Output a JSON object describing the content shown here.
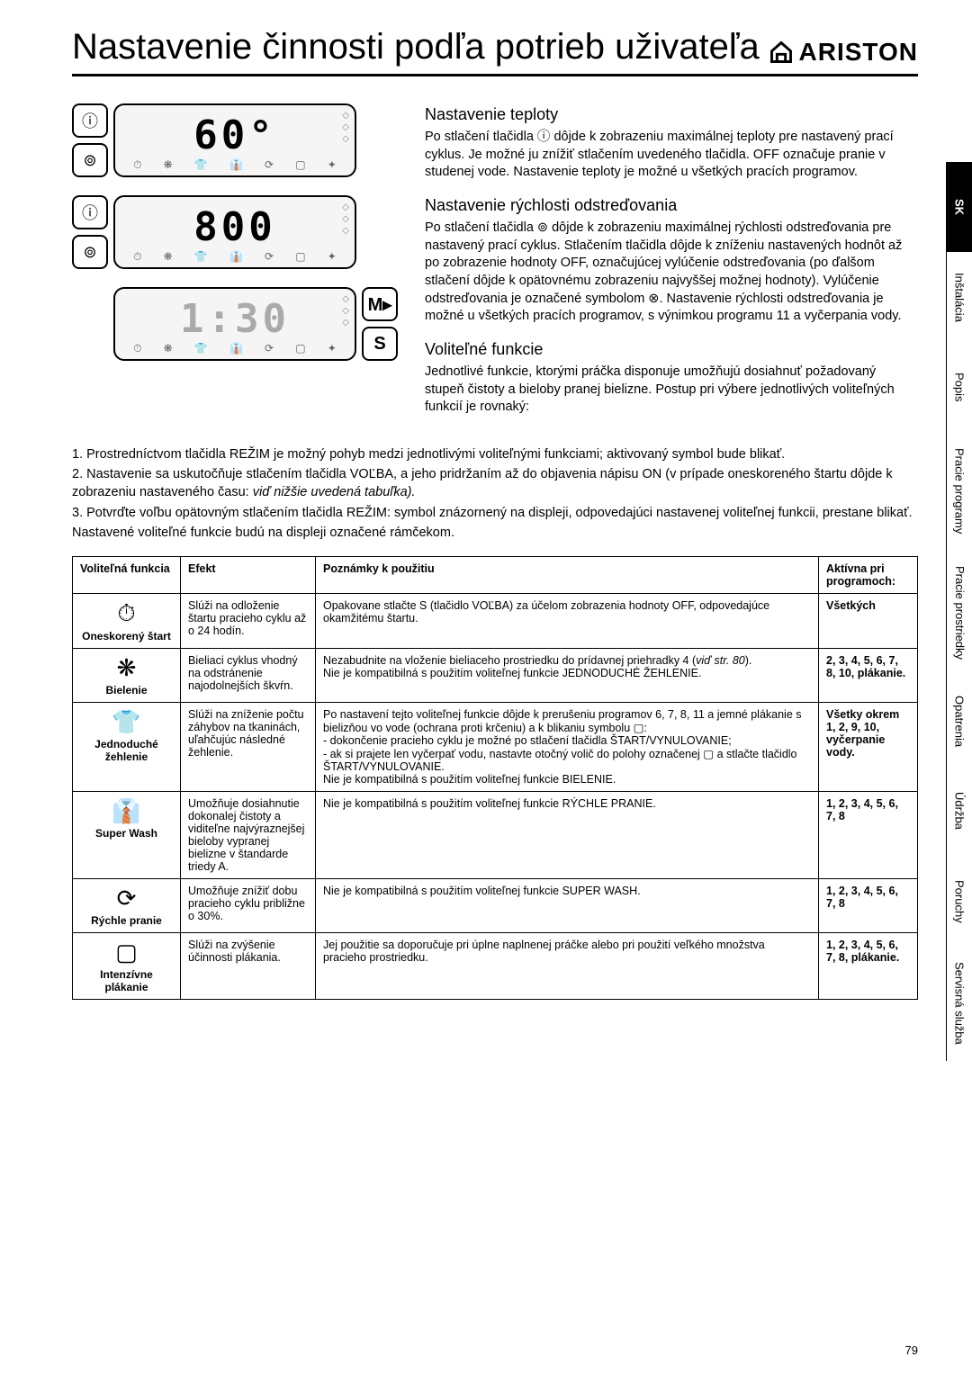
{
  "title": "Nastavenie činnosti podľa potrieb uživateľa",
  "brand": "ARISTON",
  "page_number": "79",
  "displays": [
    {
      "value": "60°",
      "dim": false
    },
    {
      "value": "800",
      "suffix": "",
      "dim": false
    },
    {
      "value": "1:30",
      "dim": true
    }
  ],
  "right_buttons": [
    "M▸",
    "S"
  ],
  "sections": {
    "temp": {
      "heading": "Nastavenie teploty",
      "text": "Po stlačení tlačidla ⓘ dôjde k zobrazeniu maximálnej teploty pre nastavený prací cyklus. Je možné ju znížiť stlačením uvedeného tlačidla. OFF označuje pranie v studenej vode. Nastavenie teploty je možné u všetkých pracích programov."
    },
    "spin": {
      "heading": "Nastavenie rýchlosti odstreďovania",
      "text": "Po stlačení tlačidla ⊚ dôjde k zobrazeniu maximálnej rýchlosti odstreďovania pre nastavený prací cyklus. Stlačením tlačidla dôjde k zníženiu nastavených hodnôt až po zobrazenie hodnoty OFF, označujúcej vylúčenie odstreďovania (po ďalšom stlačení dôjde k opätovnému zobrazeniu najvyššej možnej hodnoty). Vylúčenie odstreďovania je označené symbolom ⊗. Nastavenie rýchlosti odstreďovania je možné u všetkých pracích programov, s výnimkou programu 11 a vyčerpania vody."
    },
    "opt": {
      "heading": "Voliteľné funkcie",
      "text": "Jednotlivé funkcie, ktorými práčka disponuje umožňujú dosiahnuť požadovaný stupeň čistoty a bieloby pranej bielizne. Postup pri výbere jednotlivých voliteľných funkcií je rovnaký:"
    }
  },
  "body_lines": [
    "1. Prostredníctvom tlačidla REŽIM je možný pohyb medzi jednotlivými voliteľnými funkciami; aktivovaný symbol bude blikať.",
    "2. Nastavenie sa uskutočňuje stlačením tlačidla VOĽBA, a jeho pridržaním až do objavenia nápisu ON (v prípade oneskoreného štartu dôjde k zobrazeniu nastaveného času: viď nižšie uvedená tabuľka).",
    "3. Potvrďte voľbu opätovným stlačením tlačidla REŽIM: symbol znázornený na displeji, odpovedajúci nastavenej voliteľnej funkcii, prestane blikať.",
    "Nastavené voliteľné funkcie budú na displeji označené rámčekom."
  ],
  "table": {
    "headers": [
      "Voliteľná funkcia",
      "Efekt",
      "Poznámky k použitiu",
      "Aktívna pri programoch:"
    ],
    "rows": [
      {
        "icon": "⏱",
        "name": "Oneskorený štart",
        "effect": "Slúži na odloženie štartu pracieho cyklu až o 24 hodín.",
        "notes": "Opakovane stlačte S (tlačidlo VOĽBA) za účelom zobrazenia hodnoty OFF, odpovedajúce okamžitému štartu.",
        "active": "Všetkých"
      },
      {
        "icon": "❋",
        "name": "Bielenie",
        "effect": "Bieliaci cyklus vhodný na odstránenie najodolnejších škvŕn.",
        "notes": "Nezabudnite na vloženie bieliaceho prostriedku do prídavnej priehradky 4 (viď str. 80).\nNie je kompatibilná s použitím voliteľnej funkcie JEDNODUCHÉ ŽEHLENIE.",
        "active": "2, 3, 4, 5, 6, 7, 8, 10, plákanie."
      },
      {
        "icon": "👕",
        "name": "Jednoduché žehlenie",
        "effect": "Slúži na zníženie počtu záhybov na tkaninách, uľahčujúc následné žehlenie.",
        "notes": "Po nastavení tejto voliteľnej funkcie dôjde k prerušeniu programov 6, 7, 8, 11 a jemné plákanie s bielizňou vo vode (ochrana proti krčeniu) a k blikaniu symbolu ▢:\n- dokončenie pracieho cyklu je možné po stlačení tlačidla ŠTART/VYNULOVANIE;\n- ak si prajete len vyčerpať vodu, nastavte otočný volič do polohy označenej ▢ a stlačte tlačidlo ŠTART/VYNULOVANIE.\nNie je kompatibilná s použitím voliteľnej funkcie BIELENIE.",
        "active": "Všetky okrem 1, 2, 9, 10, vyčerpanie vody."
      },
      {
        "icon": "👔",
        "name": "Super Wash",
        "effect": "Umožňuje dosiahnutie dokonalej čistoty a viditeľne najvýraznejšej bieloby vypranej bielizne v štandarde triedy A.",
        "notes": "Nie je kompatibilná s použitím voliteľnej funkcie RÝCHLE PRANIE.",
        "active": "1, 2, 3, 4, 5, 6, 7, 8"
      },
      {
        "icon": "⟳",
        "name": "Rýchle pranie",
        "effect": "Umožňuje znížiť dobu pracieho cyklu približne o 30%.",
        "notes": "Nie je kompatibilná s použitím voliteľnej funkcie SUPER WASH.",
        "active": "1, 2, 3, 4, 5, 6, 7, 8"
      },
      {
        "icon": "▢",
        "name": "Intenzívne plákanie",
        "effect": "Slúži na zvýšenie účinnosti plákania.",
        "notes": "Jej použitie sa doporučuje pri úplne naplnenej práčke alebo pri použití veľkého množstva pracieho prostriedku.",
        "active": "1, 2, 3, 4, 5, 6, 7, 8, plákanie."
      }
    ]
  },
  "tabs": [
    {
      "label": "SK",
      "active": true
    },
    {
      "label": "Inštalácia",
      "active": false
    },
    {
      "label": "Popis",
      "active": false
    },
    {
      "label": "Pracie programy",
      "active": false
    },
    {
      "label": "Pracie prostriedky",
      "active": false,
      "double": true
    },
    {
      "label": "Opatrenia",
      "active": false
    },
    {
      "label": "Údržba",
      "active": false
    },
    {
      "label": "Poruchy",
      "active": false
    },
    {
      "label": "Servisná služba",
      "active": false
    }
  ]
}
